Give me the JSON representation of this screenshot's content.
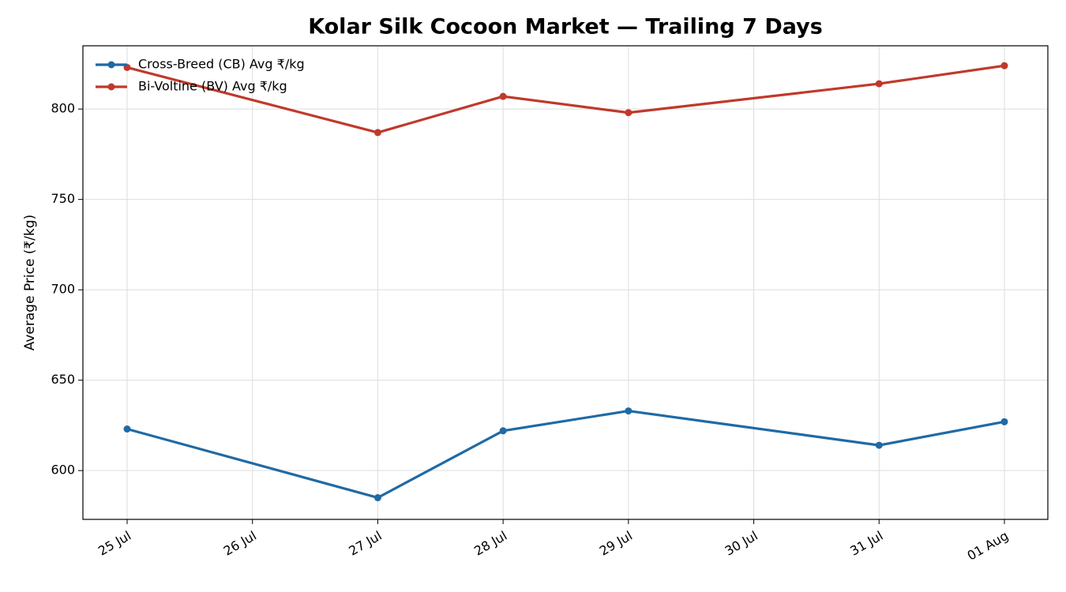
{
  "chart_data": {
    "type": "line",
    "title": "Kolar Silk Cocoon Market — Trailing 7 Days",
    "y_label": "Average Price (₹/kg)",
    "x": [
      "25 Jul",
      "27 Jul",
      "28 Jul",
      "29 Jul",
      "31 Jul",
      "01 Aug"
    ],
    "xticks": [
      "25 Jul",
      "26 Jul",
      "27 Jul",
      "28 Jul",
      "29 Jul",
      "30 Jul",
      "31 Jul",
      "01 Aug"
    ],
    "series": [
      {
        "name": "Cross-Breed (CB) Avg ₹/kg",
        "color": "#1f6aa5",
        "values": [
          623,
          585,
          622,
          633,
          614,
          627
        ]
      },
      {
        "name": "Bi-Voltine (BV) Avg ₹/kg",
        "color": "#c0392b",
        "values": [
          823,
          787,
          807,
          798,
          814,
          824
        ]
      }
    ],
    "ylim": [
      573,
      835
    ],
    "yticks": [
      600,
      650,
      700,
      750,
      800
    ],
    "grid": true,
    "legend": "upper left"
  }
}
